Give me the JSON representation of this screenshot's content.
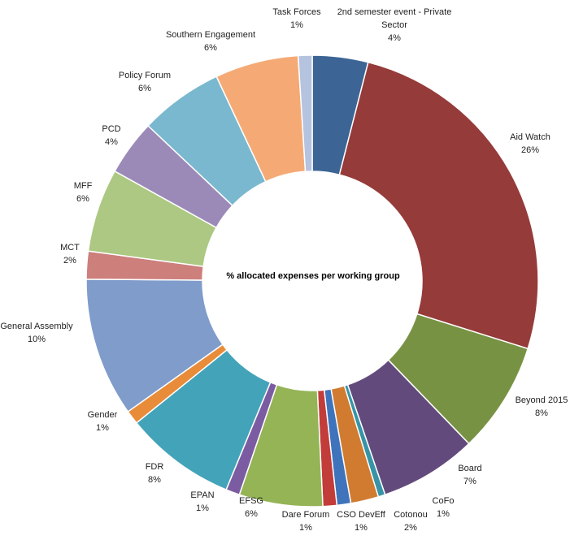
{
  "chart_data": {
    "type": "pie",
    "title": "% allocated expenses per working group",
    "slices": [
      {
        "label": "2nd semester event - Private Sector",
        "value": 4,
        "value_label": "4%",
        "color": "#3c6595"
      },
      {
        "label": "Aid Watch",
        "value": 26,
        "value_label": "26%",
        "color": "#953b3a"
      },
      {
        "label": "Beyond 2015",
        "value": 8,
        "value_label": "8%",
        "color": "#789244"
      },
      {
        "label": "Board",
        "value": 7,
        "value_label": "7%",
        "color": "#624b7c"
      },
      {
        "label": "CoFo",
        "value": 0.5,
        "value_label": "1%",
        "color": "#3794a7"
      },
      {
        "label": "Cotonou",
        "value": 2,
        "value_label": "2%",
        "color": "#d07b30"
      },
      {
        "label": "CSO DevEff",
        "value": 1,
        "value_label": "1%",
        "color": "#3f74bc"
      },
      {
        "label": "Dare Forum",
        "value": 1,
        "value_label": "1%",
        "color": "#c23c39"
      },
      {
        "label": "EFSG",
        "value": 6,
        "value_label": "6%",
        "color": "#94b456"
      },
      {
        "label": "EPAN",
        "value": 1,
        "value_label": "1%",
        "color": "#7b5ca2"
      },
      {
        "label": "FDR",
        "value": 8,
        "value_label": "8%",
        "color": "#43a3b9"
      },
      {
        "label": "Gender",
        "value": 1,
        "value_label": "1%",
        "color": "#e88c3a"
      },
      {
        "label": "General Assembly",
        "value": 10,
        "value_label": "10%",
        "color": "#7f9ccb"
      },
      {
        "label": "MCT",
        "value": 2,
        "value_label": "2%",
        "color": "#cd7f7c"
      },
      {
        "label": "MFF",
        "value": 6,
        "value_label": "6%",
        "color": "#acc882"
      },
      {
        "label": "PCD",
        "value": 4,
        "value_label": "4%",
        "color": "#9b8ab7"
      },
      {
        "label": "Policy Forum",
        "value": 6,
        "value_label": "6%",
        "color": "#7ab8cf"
      },
      {
        "label": "Southern Engagement",
        "value": 6,
        "value_label": "6%",
        "color": "#f5aa76"
      },
      {
        "label": "Task Forces",
        "value": 1,
        "value_label": "1%",
        "color": "#b5c3de"
      }
    ],
    "legend": "none"
  }
}
